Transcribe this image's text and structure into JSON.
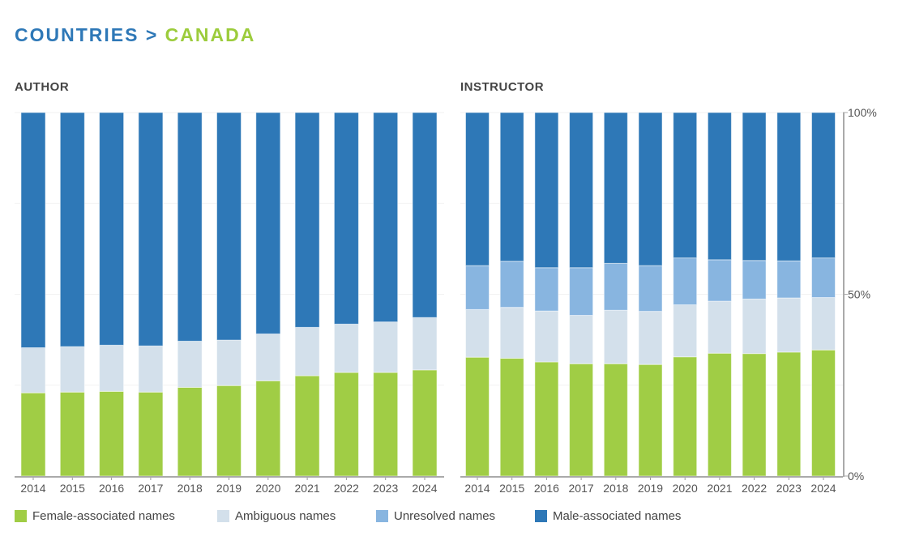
{
  "title": {
    "part1": "COUNTRIES",
    "sep": ">",
    "part2": "CANADA"
  },
  "colors": {
    "female": "#a0cd45",
    "ambiguous": "#d3e0eb",
    "unresolved": "#88b5e0",
    "male": "#2e78b7"
  },
  "chart_data": [
    {
      "type": "bar",
      "stacked": true,
      "title": "AUTHOR",
      "categories": [
        "2014",
        "2015",
        "2016",
        "2017",
        "2018",
        "2019",
        "2020",
        "2021",
        "2022",
        "2023",
        "2024"
      ],
      "ylim": [
        0,
        100
      ],
      "series": [
        {
          "name": "Female-associated names",
          "values": [
            22.9,
            23.1,
            23.3,
            23.1,
            24.4,
            24.9,
            26.2,
            27.6,
            28.5,
            28.5,
            29.2
          ]
        },
        {
          "name": "Ambiguous names",
          "values": [
            12.4,
            12.5,
            12.7,
            12.7,
            12.7,
            12.5,
            12.9,
            13.3,
            13.3,
            13.9,
            14.4
          ]
        },
        {
          "name": "Unresolved names",
          "values": [
            0,
            0,
            0,
            0,
            0,
            0,
            0,
            0,
            0,
            0,
            0
          ]
        },
        {
          "name": "Male-associated names",
          "values": [
            64.7,
            64.4,
            64.0,
            64.2,
            62.9,
            62.6,
            60.9,
            59.1,
            58.2,
            57.6,
            56.4
          ]
        }
      ]
    },
    {
      "type": "bar",
      "stacked": true,
      "title": "INSTRUCTOR",
      "categories": [
        "2014",
        "2015",
        "2016",
        "2017",
        "2018",
        "2019",
        "2020",
        "2021",
        "2022",
        "2023",
        "2024"
      ],
      "ylim": [
        0,
        100
      ],
      "yticks": [
        "0%",
        "50%",
        "100%"
      ],
      "series": [
        {
          "name": "Female-associated names",
          "values": [
            32.7,
            32.4,
            31.4,
            30.9,
            30.9,
            30.7,
            32.8,
            33.8,
            33.7,
            34.1,
            34.7
          ]
        },
        {
          "name": "Ambiguous names",
          "values": [
            13.1,
            14.0,
            14.0,
            13.3,
            14.7,
            14.6,
            14.3,
            14.3,
            15.0,
            14.9,
            14.4
          ]
        },
        {
          "name": "Unresolved names",
          "values": [
            12.1,
            12.7,
            11.9,
            13.1,
            12.9,
            12.6,
            12.9,
            11.4,
            10.6,
            10.2,
            10.9
          ]
        },
        {
          "name": "Male-associated names",
          "values": [
            42.1,
            40.9,
            42.7,
            42.7,
            41.5,
            42.1,
            40.0,
            40.5,
            40.7,
            40.8,
            40.0
          ]
        }
      ]
    }
  ],
  "legend": [
    "Female-associated names",
    "Ambiguous names",
    "Unresolved names",
    "Male-associated names"
  ]
}
